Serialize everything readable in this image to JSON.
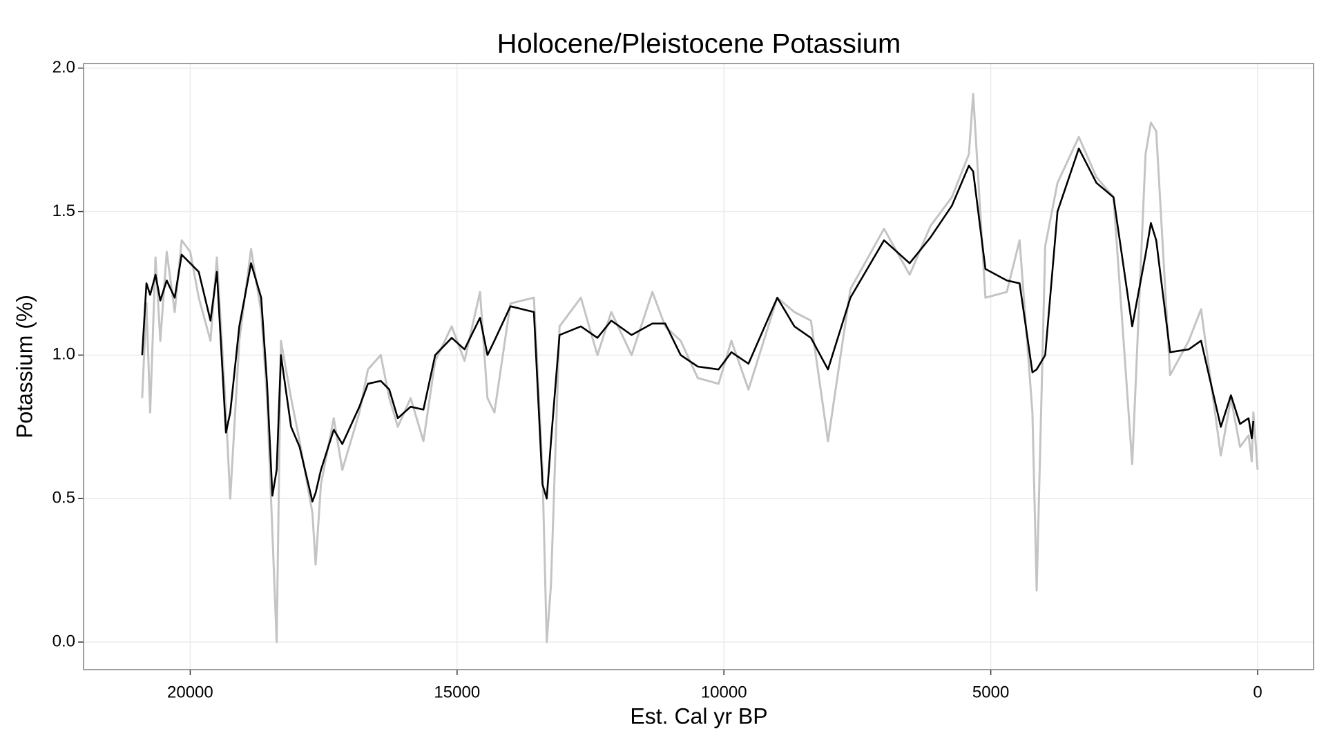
{
  "chart_data": {
    "type": "line",
    "title": "Holocene/Pleistocene Potassium",
    "x_label": "Est. Cal yr BP",
    "y_label": "Potassium (%)",
    "x": [
      20900,
      20820,
      20750,
      20650,
      20560,
      20440,
      20290,
      20160,
      20000,
      19840,
      19620,
      19500,
      19330,
      19250,
      19080,
      18860,
      18670,
      18560,
      18460,
      18380,
      18300,
      18110,
      17950,
      17710,
      17650,
      17550,
      17310,
      17150,
      16830,
      16670,
      16430,
      16270,
      16110,
      15870,
      15630,
      15410,
      15100,
      14860,
      14570,
      14430,
      14300,
      14000,
      13560,
      13400,
      13320,
      13240,
      13080,
      12680,
      12370,
      12110,
      11730,
      11340,
      11100,
      10810,
      10490,
      10100,
      9860,
      9540,
      9000,
      8680,
      8370,
      8050,
      7630,
      7000,
      6520,
      6130,
      5730,
      5410,
      5330,
      5100,
      4700,
      4460,
      4220,
      4140,
      3980,
      3750,
      3350,
      3020,
      2700,
      2350,
      2100,
      2000,
      1900,
      1640,
      1290,
      1060,
      690,
      500,
      330,
      170,
      110,
      80,
      0
    ],
    "series": [
      {
        "color": "#c4c4c4",
        "values": [
          0.85,
          1.18,
          0.8,
          1.34,
          1.05,
          1.36,
          1.15,
          1.4,
          1.36,
          1.2,
          1.05,
          1.34,
          0.8,
          0.5,
          1.05,
          1.37,
          1.15,
          0.85,
          0.38,
          0.0,
          1.05,
          0.85,
          0.7,
          0.45,
          0.27,
          0.55,
          0.78,
          0.6,
          0.8,
          0.95,
          1.0,
          0.85,
          0.75,
          0.85,
          0.7,
          0.98,
          1.1,
          0.98,
          1.22,
          0.85,
          0.8,
          1.18,
          1.2,
          0.6,
          0.0,
          0.2,
          1.1,
          1.2,
          1.0,
          1.15,
          1.0,
          1.22,
          1.1,
          1.05,
          0.92,
          0.9,
          1.05,
          0.88,
          1.2,
          1.15,
          1.12,
          0.7,
          1.23,
          1.44,
          1.28,
          1.45,
          1.55,
          1.7,
          1.91,
          1.2,
          1.22,
          1.4,
          0.8,
          0.18,
          1.38,
          1.6,
          1.76,
          1.62,
          1.55,
          0.62,
          1.7,
          1.81,
          1.78,
          0.93,
          1.05,
          1.16,
          0.65,
          0.85,
          0.68,
          0.72,
          0.63,
          0.8,
          0.6
        ]
      },
      {
        "color": "#000000",
        "values": [
          1.0,
          1.25,
          1.21,
          1.28,
          1.19,
          1.26,
          1.2,
          1.35,
          1.32,
          1.29,
          1.12,
          1.29,
          0.73,
          0.8,
          1.1,
          1.32,
          1.2,
          0.9,
          0.51,
          0.6,
          1.0,
          0.75,
          0.68,
          0.49,
          0.52,
          0.6,
          0.74,
          0.69,
          0.82,
          0.9,
          0.91,
          0.88,
          0.78,
          0.82,
          0.81,
          1.0,
          1.06,
          1.02,
          1.13,
          1.0,
          1.05,
          1.17,
          1.15,
          0.55,
          0.5,
          0.7,
          1.07,
          1.1,
          1.06,
          1.12,
          1.07,
          1.11,
          1.11,
          1.0,
          0.96,
          0.95,
          1.01,
          0.97,
          1.2,
          1.1,
          1.06,
          0.95,
          1.2,
          1.4,
          1.32,
          1.41,
          1.52,
          1.66,
          1.64,
          1.3,
          1.26,
          1.25,
          0.94,
          0.95,
          1.0,
          1.5,
          1.72,
          1.6,
          1.55,
          1.1,
          1.35,
          1.46,
          1.4,
          1.01,
          1.02,
          1.05,
          0.75,
          0.86,
          0.76,
          0.78,
          0.71,
          0.77,
          null
        ]
      }
    ],
    "xlim": [
      21998,
      -1048
    ],
    "xticks": [
      20000,
      15000,
      10000,
      5000,
      0
    ],
    "ylim": [
      -0.096,
      2.016
    ],
    "yticks": [
      {
        "value": 0,
        "label": "0.0"
      },
      0.5,
      {
        "value": 1,
        "label": "1.0"
      },
      1.5,
      {
        "value": 2,
        "label": "2.0"
      }
    ],
    "grid": true
  }
}
